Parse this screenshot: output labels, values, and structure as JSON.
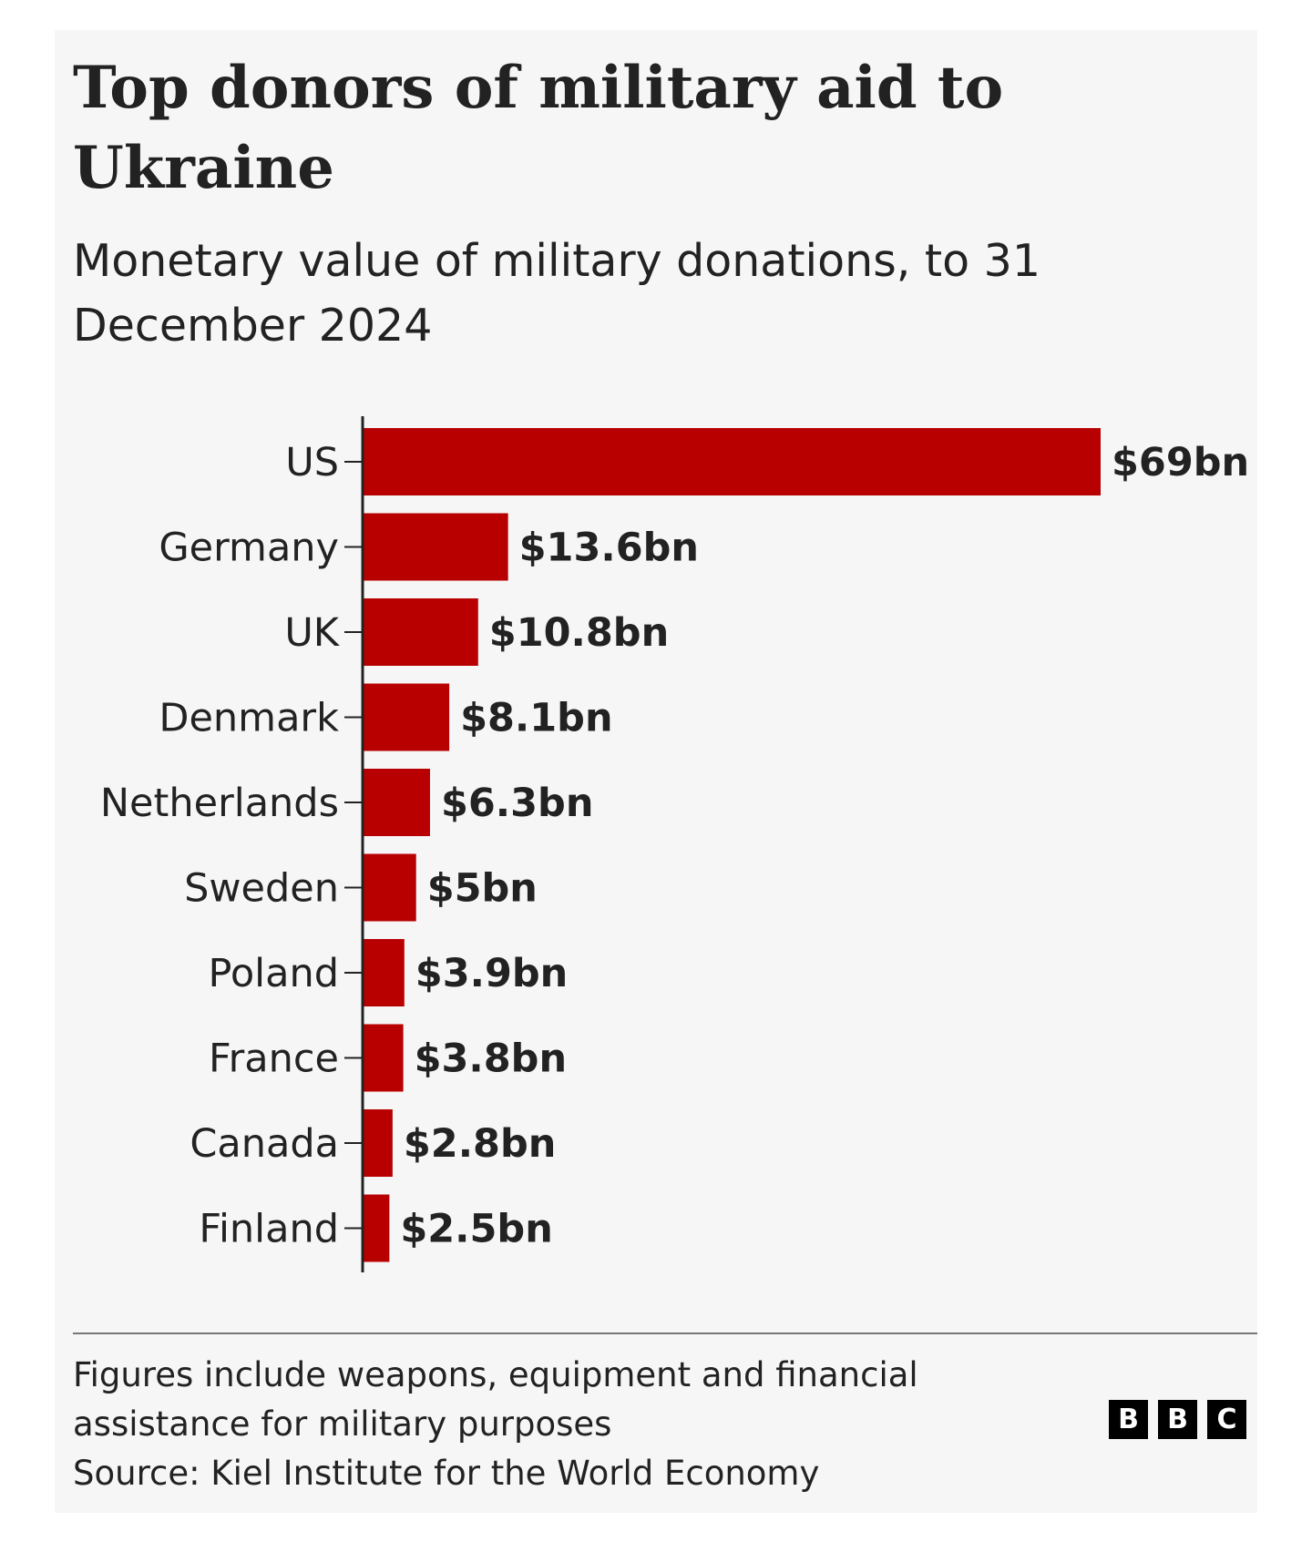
{
  "chart_data": {
    "type": "bar",
    "orientation": "horizontal",
    "title": "Top donors of military aid to Ukraine",
    "subtitle": "Monetary value of military donations, to 31 December 2024",
    "categories": [
      "US",
      "Germany",
      "UK",
      "Denmark",
      "Netherlands",
      "Sweden",
      "Poland",
      "France",
      "Canada",
      "Finland"
    ],
    "values": [
      69,
      13.6,
      10.8,
      8.1,
      6.3,
      5,
      3.9,
      3.8,
      2.8,
      2.5
    ],
    "data_labels": [
      "$69bn",
      "$13.6bn",
      "$10.8bn",
      "$8.1bn",
      "$6.3bn",
      "$5bn",
      "$3.9bn",
      "$3.8bn",
      "$2.8bn",
      "$2.5bn"
    ],
    "unit": "$bn",
    "xlim": [
      0,
      69
    ],
    "grid": false,
    "bar_color": "#b80000"
  },
  "footer": {
    "note_line1": "Figures include weapons, equipment and financial",
    "note_line2": "assistance for military purposes",
    "source": "Source: Kiel Institute for the World Economy"
  },
  "logo": {
    "text": "BBC",
    "letters": [
      "B",
      "B",
      "C"
    ]
  }
}
